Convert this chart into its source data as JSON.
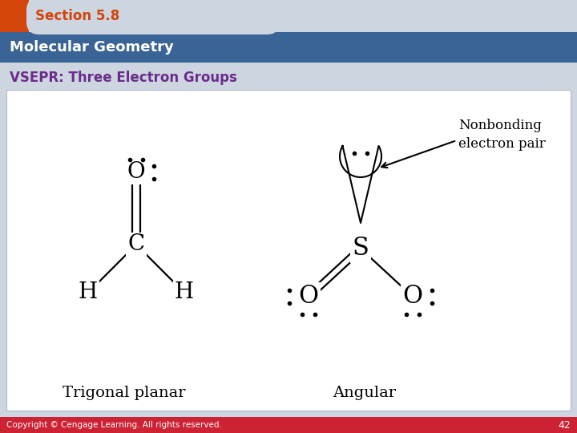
{
  "section_text": "Section 5.8",
  "title_text": "Molecular Geometry",
  "subtitle_text": "VSEPR: Three Electron Groups",
  "footer_text": "Copyright © Cengage Learning. All rights reserved.",
  "page_number": "42",
  "bg_color": "#cdd5e0",
  "header_orange": "#d4450c",
  "header_blue_dark": "#3a6496",
  "footer_color": "#cc2233",
  "subtitle_color": "#6b2d8b",
  "white_box_color": "#ffffff"
}
